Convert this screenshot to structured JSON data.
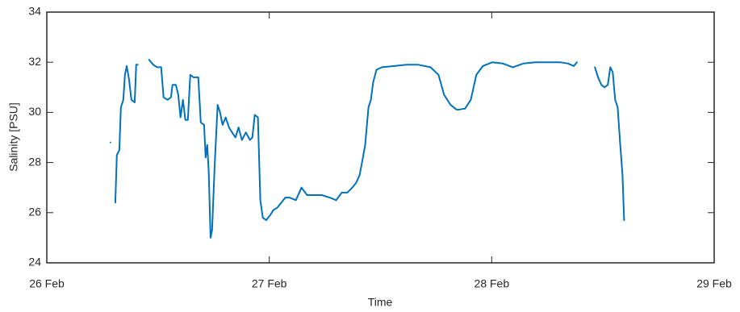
{
  "chart_data": {
    "type": "line",
    "xlabel": "Time",
    "ylabel": "Salinity [PSU]",
    "xlim": [
      26,
      29
    ],
    "xticks": [
      {
        "value": 26,
        "label": "26 Feb"
      },
      {
        "value": 27,
        "label": "27 Feb"
      },
      {
        "value": 28,
        "label": "28 Feb"
      },
      {
        "value": 29,
        "label": "29 Feb"
      }
    ],
    "ylim": [
      24,
      34
    ],
    "yticks": [
      24,
      26,
      28,
      30,
      32,
      34
    ],
    "series": [
      {
        "name": "Salinity",
        "color": "#0072bd",
        "x": [
          26.286,
          26.297,
          26.308,
          26.315,
          26.326,
          26.333,
          26.344,
          26.351,
          26.359,
          26.37,
          26.38,
          26.395,
          26.402,
          26.409,
          26.43,
          26.46,
          26.478,
          26.496,
          26.514,
          26.525,
          26.543,
          26.558,
          26.565,
          26.58,
          26.591,
          26.601,
          26.612,
          26.623,
          26.634,
          26.645,
          26.659,
          26.681,
          26.692,
          26.707,
          26.714,
          26.721,
          26.728,
          26.736,
          26.743,
          26.754,
          26.768,
          26.779,
          26.79,
          26.804,
          26.819,
          26.833,
          26.848,
          26.862,
          26.877,
          26.895,
          26.913,
          26.924,
          26.935,
          26.949,
          26.96,
          26.971,
          26.986,
          27.004,
          27.018,
          27.036,
          27.054,
          27.072,
          27.091,
          27.12,
          27.145,
          27.17,
          27.199,
          27.236,
          27.272,
          27.301,
          27.326,
          27.351,
          27.373,
          27.391,
          27.406,
          27.417,
          27.431,
          27.446,
          27.457,
          27.467,
          27.482,
          27.507,
          27.562,
          27.616,
          27.67,
          27.725,
          27.761,
          27.786,
          27.815,
          27.844,
          27.88,
          27.906,
          27.931,
          27.96,
          28.003,
          28.05,
          28.095,
          28.142,
          28.197,
          28.252,
          28.307,
          28.343,
          28.369,
          28.383,
          28.42,
          28.464,
          28.478,
          28.493,
          28.507,
          28.522,
          28.533,
          28.544,
          28.555,
          28.566,
          28.577,
          28.588,
          28.595
        ],
        "values": [
          28.8,
          null,
          26.4,
          28.3,
          28.5,
          30.2,
          30.5,
          31.5,
          31.85,
          31.3,
          30.5,
          30.4,
          31.9,
          31.9,
          null,
          32.1,
          31.9,
          31.8,
          31.8,
          30.6,
          30.5,
          30.6,
          31.1,
          31.1,
          30.7,
          29.8,
          30.5,
          29.7,
          29.7,
          31.5,
          31.4,
          31.4,
          29.6,
          29.5,
          28.2,
          28.7,
          27.6,
          25.0,
          25.3,
          27.8,
          30.3,
          30.0,
          29.5,
          29.8,
          29.4,
          29.2,
          29.0,
          29.4,
          28.9,
          29.2,
          28.9,
          29.0,
          29.9,
          29.8,
          26.5,
          25.8,
          25.7,
          25.9,
          26.1,
          26.2,
          26.4,
          26.6,
          26.6,
          26.5,
          27.0,
          26.7,
          26.7,
          26.7,
          26.6,
          26.5,
          26.8,
          26.8,
          27.0,
          27.2,
          27.5,
          28.0,
          28.7,
          30.2,
          30.5,
          31.2,
          31.7,
          31.8,
          31.85,
          31.9,
          31.9,
          31.8,
          31.5,
          30.7,
          30.3,
          30.1,
          30.15,
          30.5,
          31.5,
          31.85,
          32.0,
          31.95,
          31.8,
          31.95,
          32.0,
          32.0,
          32.0,
          31.95,
          31.85,
          32.0,
          null,
          31.8,
          31.4,
          31.1,
          31.0,
          31.1,
          31.8,
          31.6,
          30.5,
          30.2,
          28.8,
          27.5,
          25.7
        ]
      }
    ]
  }
}
